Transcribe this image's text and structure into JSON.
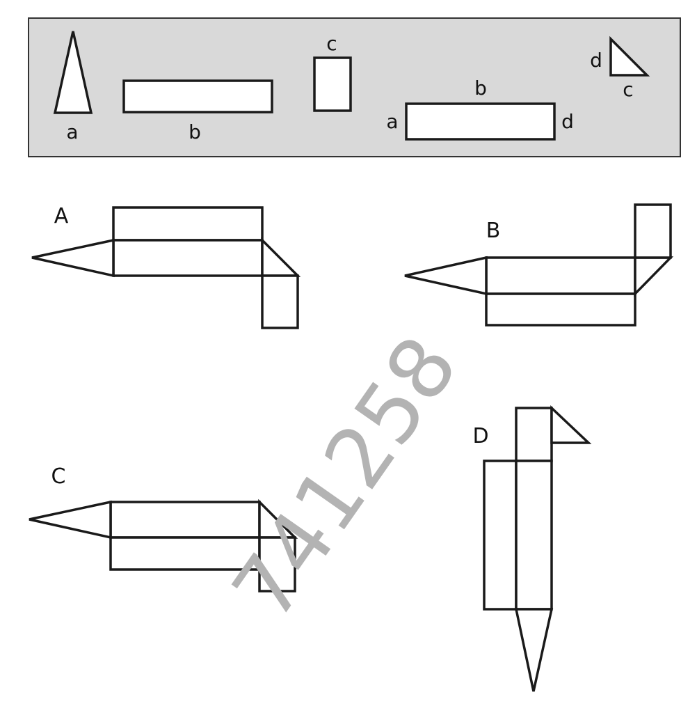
{
  "legend": {
    "pieces": [
      {
        "name": "triangle-a",
        "labels": [
          "a"
        ]
      },
      {
        "name": "rectangle-b",
        "labels": [
          "b"
        ]
      },
      {
        "name": "rectangle-c",
        "labels": [
          "c"
        ]
      },
      {
        "name": "rectangle-abd",
        "labels": [
          "b",
          "a",
          "d"
        ]
      },
      {
        "name": "triangle-dc",
        "labels": [
          "d",
          "c"
        ]
      }
    ]
  },
  "options": {
    "A": {
      "label": "A"
    },
    "B": {
      "label": "B"
    },
    "C": {
      "label": "C"
    },
    "D": {
      "label": "D"
    }
  },
  "watermark": {
    "text": "741258",
    "color": "#b3b3b3"
  },
  "colors": {
    "panel": "#d9d9d9",
    "stroke": "#1a1a1a"
  }
}
